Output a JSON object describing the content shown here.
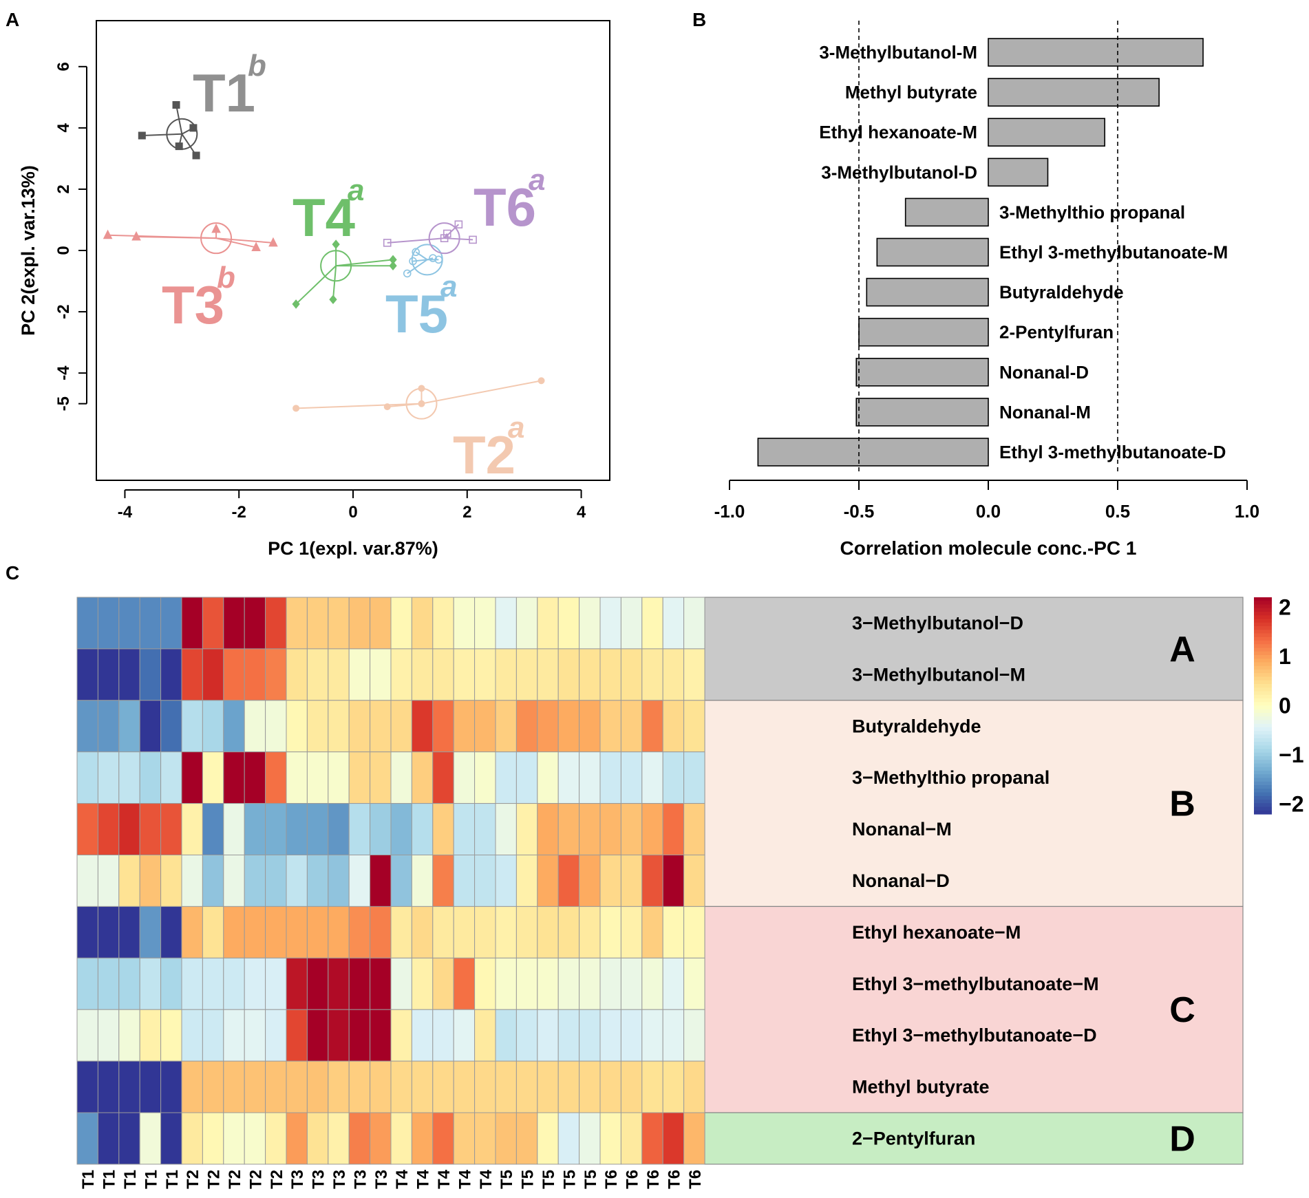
{
  "panel_letters": {
    "a": "A",
    "b": "B",
    "c": "C"
  },
  "chart_data": [
    {
      "panel": "A",
      "type": "scatter",
      "xlabel": "PC 1(expl. var.87%)",
      "ylabel": "PC 2(expl. var.13%)",
      "xlim": [
        -4.5,
        4.5
      ],
      "ylim": [
        -7.5,
        7.5
      ],
      "xticks": [
        -4,
        -2,
        0,
        2,
        4
      ],
      "yticks": [
        6,
        4,
        2,
        0,
        -2,
        -4,
        -5
      ],
      "groups": [
        {
          "name": "T1",
          "sup": "b",
          "color": "#555555",
          "labelColor": "#909090",
          "marker": "square",
          "filled": true,
          "centroid": [
            -3.0,
            3.8
          ],
          "points": [
            [
              -3.7,
              3.75
            ],
            [
              -3.1,
              4.75
            ],
            [
              -2.8,
              4.0
            ],
            [
              -2.75,
              3.1
            ],
            [
              -3.05,
              3.4
            ]
          ]
        },
        {
          "name": "T2",
          "sup": "a",
          "color": "#F3C9B0",
          "labelColor": "#F3C9B0",
          "marker": "circle",
          "filled": true,
          "centroid": [
            1.2,
            -5.0
          ],
          "points": [
            [
              3.3,
              -4.25
            ],
            [
              1.2,
              -4.5
            ],
            [
              0.6,
              -5.1
            ],
            [
              1.2,
              -5.0
            ],
            [
              -1.0,
              -5.15
            ]
          ]
        },
        {
          "name": "T3",
          "sup": "b",
          "color": "#EA9392",
          "labelColor": "#EA9392",
          "marker": "triangle",
          "filled": true,
          "centroid": [
            -2.4,
            0.4
          ],
          "points": [
            [
              -4.3,
              0.5
            ],
            [
              -3.8,
              0.45
            ],
            [
              -2.4,
              0.7
            ],
            [
              -1.7,
              0.1
            ],
            [
              -1.4,
              0.25
            ]
          ]
        },
        {
          "name": "T4",
          "sup": "a",
          "color": "#6EBF6A",
          "labelColor": "#6EBF6A",
          "marker": "diamond",
          "filled": true,
          "centroid": [
            -0.3,
            -0.5
          ],
          "points": [
            [
              -1.0,
              -1.75
            ],
            [
              -0.35,
              -1.6
            ],
            [
              -0.3,
              0.2
            ],
            [
              0.7,
              -0.3
            ],
            [
              0.7,
              -0.5
            ]
          ]
        },
        {
          "name": "T5",
          "sup": "a",
          "color": "#8DC4E2",
          "labelColor": "#8DC4E2",
          "marker": "circle",
          "filled": false,
          "centroid": [
            1.3,
            -0.3
          ],
          "points": [
            [
              1.05,
              -0.35
            ],
            [
              1.1,
              -0.05
            ],
            [
              0.95,
              -0.75
            ],
            [
              1.4,
              -0.25
            ],
            [
              1.5,
              -0.3
            ]
          ]
        },
        {
          "name": "T6",
          "sup": "a",
          "color": "#B694CC",
          "labelColor": "#B694CC",
          "marker": "square",
          "filled": false,
          "centroid": [
            1.6,
            0.4
          ],
          "points": [
            [
              0.6,
              0.25
            ],
            [
              1.85,
              0.85
            ],
            [
              2.1,
              0.35
            ],
            [
              1.6,
              0.4
            ],
            [
              1.65,
              0.55
            ]
          ]
        }
      ]
    },
    {
      "panel": "B",
      "type": "bar",
      "orientation": "horizontal",
      "xlabel": "Correlation molecule conc.-PC 1",
      "xlim": [
        -1.0,
        1.0
      ],
      "xticks": [
        -1.0,
        -0.5,
        0.0,
        0.5,
        1.0
      ],
      "xtick_labels": [
        "-1.0",
        "-0.5",
        "0.0",
        "0.5",
        "1.0"
      ],
      "reference_lines": [
        -0.5,
        0.5
      ],
      "bar_color": "#AFAFAF",
      "categories": [
        "3-Methylbutanol-M",
        "Methyl butyrate",
        "Ethyl hexanoate-M",
        "3-Methylbutanol-D",
        "3-Methylthio propanal",
        "Ethyl 3-methylbutanoate-M",
        "Butyraldehyde",
        "2-Pentylfuran",
        "Nonanal-D",
        "Nonanal-M",
        "Ethyl 3-methylbutanoate-D"
      ],
      "values": [
        0.83,
        0.66,
        0.45,
        0.23,
        -0.32,
        -0.43,
        -0.47,
        -0.5,
        -0.51,
        -0.51,
        -0.89
      ]
    },
    {
      "panel": "C",
      "type": "heatmap",
      "columns": [
        "T1",
        "T1",
        "T1",
        "T1",
        "T1",
        "T2",
        "T2",
        "T2",
        "T2",
        "T2",
        "T3",
        "T3",
        "T3",
        "T3",
        "T3",
        "T4",
        "T4",
        "T4",
        "T4",
        "T4",
        "T5",
        "T5",
        "T5",
        "T5",
        "T5",
        "T6",
        "T6",
        "T6",
        "T6",
        "T6"
      ],
      "rows": [
        "3−Methylbutanol−D",
        "3−Methylbutanol−M",
        "Butyraldehyde",
        "3−Methylthio propanal",
        "Nonanal−M",
        "Nonanal−D",
        "Ethyl hexanoate−M",
        "Ethyl 3−methylbutanoate−M",
        "Ethyl 3−methylbutanoate−D",
        "Methyl butyrate",
        "2−Pentylfuran"
      ],
      "values": [
        [
          -1.6,
          -1.6,
          -1.6,
          -1.6,
          -1.6,
          2.2,
          1.5,
          2.2,
          2.2,
          1.6,
          0.6,
          0.6,
          0.6,
          0.7,
          0.7,
          0.1,
          0.5,
          0.2,
          -0.1,
          -0.1,
          -0.4,
          -0.2,
          0.2,
          0.1,
          -0.2,
          -0.4,
          -0.3,
          0.1,
          -0.4,
          -0.3
        ],
        [
          -2.2,
          -2.2,
          -2.2,
          -1.8,
          -2.2,
          1.6,
          1.8,
          1.3,
          1.3,
          1.2,
          0.4,
          0.3,
          0.3,
          -0.1,
          -0.1,
          0.2,
          0.3,
          0.3,
          0.2,
          0.2,
          0.3,
          0.3,
          0.3,
          0.4,
          0.4,
          0.4,
          0.4,
          0.3,
          0.3,
          0.2
        ],
        [
          -1.5,
          -1.5,
          -1.3,
          -2.2,
          -1.8,
          -0.8,
          -0.9,
          -1.4,
          -0.2,
          -0.2,
          0.1,
          0.3,
          0.3,
          0.5,
          0.5,
          0.5,
          1.7,
          1.3,
          0.8,
          0.8,
          0.6,
          1.1,
          1.0,
          0.9,
          0.9,
          0.6,
          0.6,
          1.2,
          0.5,
          0.4
        ],
        [
          -0.8,
          -0.7,
          -0.7,
          -0.9,
          -0.7,
          2.2,
          0.1,
          2.2,
          2.2,
          1.3,
          -0.1,
          -0.1,
          -0.1,
          0.5,
          0.5,
          -0.2,
          0.6,
          1.6,
          -0.2,
          -0.1,
          -0.6,
          -0.6,
          -0.1,
          -0.4,
          -0.4,
          -0.6,
          -0.6,
          -0.4,
          -0.7,
          -0.7
        ],
        [
          1.4,
          1.6,
          1.8,
          1.5,
          1.5,
          0.2,
          -1.6,
          -0.3,
          -1.3,
          -1.3,
          -1.4,
          -1.4,
          -1.5,
          -0.8,
          -1.0,
          -1.2,
          -0.8,
          0.6,
          -0.7,
          -0.7,
          -0.3,
          0.2,
          0.9,
          0.8,
          0.8,
          0.8,
          0.7,
          0.9,
          1.3,
          0.6
        ],
        [
          -0.3,
          -0.3,
          0.4,
          0.7,
          0.4,
          -0.3,
          -1.1,
          -0.3,
          -1.0,
          -1.0,
          -0.7,
          -1.0,
          -1.1,
          -0.4,
          2.4,
          -1.1,
          -0.2,
          1.2,
          -0.7,
          -0.7,
          -0.6,
          0.2,
          0.9,
          1.4,
          0.9,
          0.5,
          0.5,
          1.5,
          2.4,
          0.5
        ],
        [
          -2.2,
          -2.2,
          -2.2,
          -1.5,
          -2.2,
          0.8,
          0.4,
          0.9,
          0.9,
          0.9,
          0.9,
          0.9,
          0.9,
          1.1,
          1.2,
          0.3,
          0.5,
          0.3,
          0.3,
          0.3,
          0.2,
          0.3,
          0.4,
          0.4,
          0.3,
          0.1,
          0.2,
          0.6,
          0.1,
          0.1
        ],
        [
          -0.9,
          -0.9,
          -0.9,
          -0.7,
          -0.9,
          -0.6,
          -0.6,
          -0.6,
          -0.5,
          -0.5,
          2.0,
          2.3,
          2.1,
          2.3,
          2.3,
          -0.3,
          0.2,
          0.5,
          1.3,
          0.1,
          -0.1,
          -0.1,
          -0.1,
          -0.2,
          -0.2,
          -0.3,
          -0.3,
          -0.2,
          -0.4,
          -0.1
        ],
        [
          -0.3,
          -0.3,
          -0.2,
          0.2,
          0.1,
          -0.6,
          -0.6,
          -0.4,
          -0.4,
          -0.5,
          1.6,
          2.3,
          2.1,
          2.4,
          2.3,
          0.2,
          -0.5,
          -0.5,
          -0.4,
          0.3,
          -0.7,
          -0.6,
          -0.5,
          -0.6,
          -0.6,
          -0.5,
          -0.5,
          -0.4,
          -0.4,
          -0.3
        ],
        [
          -2.2,
          -2.2,
          -2.2,
          -2.2,
          -2.2,
          0.7,
          0.7,
          0.7,
          0.7,
          0.7,
          0.7,
          0.7,
          0.6,
          0.6,
          0.6,
          0.5,
          0.5,
          0.5,
          0.5,
          0.5,
          0.5,
          0.5,
          0.5,
          0.5,
          0.5,
          0.5,
          0.5,
          0.4,
          0.4,
          0.5
        ],
        [
          -1.5,
          -2.2,
          -2.2,
          -0.2,
          -2.2,
          0.3,
          0.1,
          -0.1,
          -0.1,
          0.2,
          1.0,
          0.4,
          0.2,
          1.2,
          1.0,
          0.2,
          0.9,
          1.3,
          0.6,
          0.6,
          0.7,
          0.7,
          0.1,
          -0.5,
          -0.3,
          0.1,
          0.3,
          1.4,
          1.7,
          0.8
        ]
      ],
      "colorbar": {
        "min": -2.2,
        "max": 2.2,
        "tick_values": [
          2,
          1,
          0,
          -1,
          -2
        ],
        "tick_labels": [
          "2",
          "1",
          "0",
          "−1",
          "−2"
        ],
        "colors": [
          "#313695",
          "#4575B4",
          "#74ADD1",
          "#ABD9E9",
          "#E0F3F8",
          "#FFFFBF",
          "#FEE090",
          "#FDAE61",
          "#F46D43",
          "#D73027",
          "#A50026"
        ]
      },
      "clusters": [
        {
          "label": "A",
          "rows": [
            0,
            1
          ],
          "color": "#C9C9C9"
        },
        {
          "label": "B",
          "rows": [
            2,
            5
          ],
          "color": "#FBEBE2"
        },
        {
          "label": "C",
          "rows": [
            6,
            9
          ],
          "color": "#F9D5D4"
        },
        {
          "label": "D",
          "rows": [
            10,
            10
          ],
          "color": "#C7EDC3"
        }
      ]
    }
  ]
}
